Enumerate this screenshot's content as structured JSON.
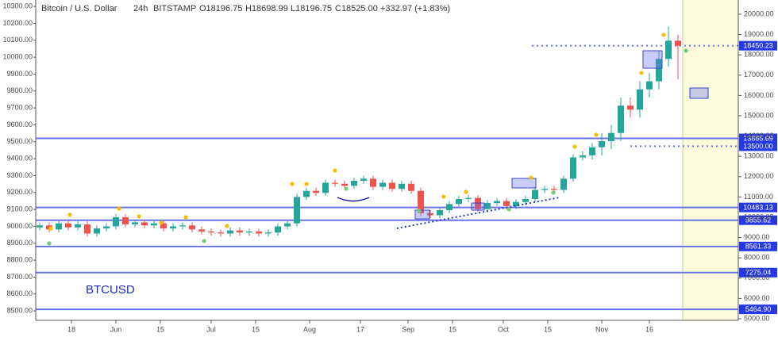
{
  "chart_data": {
    "type": "candlestick",
    "symbol": "Bitcoin / U.S. Dollar",
    "interval": "24h",
    "exchange": "BITSTAMP",
    "ohlc_open": "O18196.75",
    "ohlc_high": "H18698.99",
    "ohlc_low": "L18196.75",
    "ohlc_close": "C18525.00",
    "change": "+332.97 (+1.83%)",
    "annotation": "BTCUSD",
    "up_color": "#26a69a",
    "down_color": "#ef5350",
    "level_color": "#6a74e8",
    "label_color": "#2438e8",
    "highlight_color": "#fbfbdc",
    "xlim": [
      -1.25,
      220
    ],
    "ylim": [
      4922,
      20703
    ],
    "y2lim": [
      8444,
      10338
    ],
    "highlight_xrange": [
      202.5,
      220
    ],
    "xticks": [
      {
        "value": 10,
        "label": "18"
      },
      {
        "value": 24,
        "label": "Jun"
      },
      {
        "value": 38,
        "label": "15"
      },
      {
        "value": 54,
        "label": "Jul"
      },
      {
        "value": 68,
        "label": "15"
      },
      {
        "value": 85,
        "label": "Aug"
      },
      {
        "value": 101,
        "label": "17"
      },
      {
        "value": 116,
        "label": "Sep"
      },
      {
        "value": 130,
        "label": "15"
      },
      {
        "value": 146,
        "label": "Oct"
      },
      {
        "value": 160,
        "label": "15"
      },
      {
        "value": 177,
        "label": "Nov"
      },
      {
        "value": 192,
        "label": "16"
      }
    ],
    "yticks": [
      {
        "value": 20000,
        "label": "20000.00"
      },
      {
        "value": 19000,
        "label": "19000.00"
      },
      {
        "value": 18000,
        "label": "18000.00"
      },
      {
        "value": 17000,
        "label": "17000.00"
      },
      {
        "value": 16000,
        "label": "16000.00"
      },
      {
        "value": 15000,
        "label": "15000.00"
      },
      {
        "value": 14000,
        "label": "14000.00"
      },
      {
        "value": 13000,
        "label": "13000.00"
      },
      {
        "value": 12000,
        "label": "12000.00"
      },
      {
        "value": 11000,
        "label": "11000.00"
      },
      {
        "value": 10000,
        "label": "10000.00"
      },
      {
        "value": 9000,
        "label": "9000.00"
      },
      {
        "value": 8000,
        "label": "8000.00"
      },
      {
        "value": 7000,
        "label": "7000.00"
      },
      {
        "value": 6000,
        "label": "6000.00"
      },
      {
        "value": 5000,
        "label": "5000.00"
      }
    ],
    "y2ticks": [
      {
        "value": 10300,
        "label": "10300.00"
      },
      {
        "value": 10200,
        "label": "10200.00"
      },
      {
        "value": 10100,
        "label": "10100.00"
      },
      {
        "value": 10000,
        "label": "10000.00"
      },
      {
        "value": 9900,
        "label": "9900.00"
      },
      {
        "value": 9800,
        "label": "9800.00"
      },
      {
        "value": 9700,
        "label": "9700.00"
      },
      {
        "value": 9600,
        "label": "9600.00"
      },
      {
        "value": 9500,
        "label": "9500.00"
      },
      {
        "value": 9400,
        "label": "9400.00"
      },
      {
        "value": 9300,
        "label": "9300.00"
      },
      {
        "value": 9200,
        "label": "9200.00"
      },
      {
        "value": 9100,
        "label": "9100.00"
      },
      {
        "value": 9000,
        "label": "9000.00"
      },
      {
        "value": 8900,
        "label": "8900.00"
      },
      {
        "value": 8800,
        "label": "8800.00"
      },
      {
        "value": 8700,
        "label": "8700.00"
      },
      {
        "value": 8600,
        "label": "8600.00"
      },
      {
        "value": 8500,
        "label": "8500.00"
      }
    ],
    "levels": [
      {
        "value": 18450.23,
        "style": "dotted",
        "from": 155
      },
      {
        "value": 13885.69,
        "style": "solid"
      },
      {
        "value": 13500,
        "label": "13500.00",
        "style": "dotted",
        "from": 186
      },
      {
        "value": 10483.13,
        "style": "solid"
      },
      {
        "value": 9855.62,
        "style": "solid"
      },
      {
        "value": 8561.33,
        "style": "solid"
      },
      {
        "value": 7275.04,
        "style": "solid"
      },
      {
        "value": 5464.9,
        "label": "5464.90",
        "style": "solid"
      }
    ],
    "x": [
      0,
      3,
      6,
      9,
      12,
      15,
      18,
      21,
      24,
      27,
      30,
      33,
      36,
      39,
      42,
      45,
      48,
      51,
      54,
      57,
      60,
      63,
      66,
      69,
      72,
      75,
      78,
      81,
      84,
      87,
      90,
      93,
      96,
      99,
      102,
      105,
      108,
      111,
      114,
      117,
      120,
      123,
      126,
      129,
      132,
      135,
      138,
      141,
      144,
      147,
      150,
      153,
      156,
      159,
      162,
      165,
      168,
      171,
      174,
      177,
      180,
      183,
      186,
      189,
      192,
      195,
      198,
      201
    ],
    "open": [
      9500,
      9600,
      9400,
      9700,
      9500,
      9650,
      9200,
      9450,
      9550,
      10000,
      9650,
      9750,
      9600,
      9700,
      9450,
      9550,
      9600,
      9400,
      9300,
      9250,
      9200,
      9350,
      9250,
      9300,
      9200,
      9250,
      9550,
      9700,
      11000,
      11300,
      11200,
      11700,
      11650,
      11550,
      11800,
      11900,
      11500,
      11700,
      11400,
      11650,
      11300,
      10200,
      10100,
      10350,
      10650,
      10900,
      10950,
      10400,
      10700,
      10800,
      10550,
      10750,
      10900,
      11350,
      11400,
      11350,
      11900,
      12950,
      13050,
      13450,
      13750,
      14150,
      15500,
      15300,
      16300,
      16700,
      17800,
      18700
    ],
    "high": [
      9750,
      9750,
      9850,
      9850,
      9800,
      9800,
      9600,
      9700,
      10150,
      10150,
      9900,
      9900,
      9850,
      9850,
      9700,
      9750,
      9750,
      9550,
      9450,
      9400,
      9500,
      9500,
      9450,
      9450,
      9400,
      9700,
      9850,
      11150,
      11450,
      11450,
      11850,
      11850,
      11800,
      11950,
      12050,
      12050,
      11850,
      11850,
      11800,
      11800,
      11450,
      10350,
      10500,
      10800,
      11050,
      11100,
      11100,
      10850,
      10950,
      10950,
      10900,
      11050,
      11500,
      11550,
      11550,
      12050,
      13100,
      13250,
      13650,
      14150,
      14550,
      15900,
      15900,
      16700,
      17100,
      18200,
      19400,
      19000
    ],
    "low": [
      9350,
      9250,
      9250,
      9350,
      9350,
      9050,
      9050,
      9300,
      9400,
      9500,
      9500,
      9450,
      9450,
      9300,
      9300,
      9400,
      9250,
      9150,
      9100,
      9050,
      9050,
      9100,
      9100,
      9050,
      9050,
      9100,
      9400,
      9550,
      10850,
      11050,
      11050,
      11500,
      11400,
      11400,
      11650,
      11350,
      11350,
      11250,
      11250,
      11150,
      10050,
      9950,
      9950,
      10200,
      10500,
      10750,
      10250,
      10250,
      10550,
      10400,
      10400,
      10600,
      10750,
      11200,
      11200,
      11200,
      11750,
      12800,
      12850,
      13050,
      13350,
      13750,
      14900,
      14900,
      15900,
      16300,
      17400,
      16800
    ],
    "close": [
      9600,
      9400,
      9700,
      9500,
      9650,
      9200,
      9450,
      9550,
      10000,
      9650,
      9750,
      9600,
      9700,
      9450,
      9550,
      9600,
      9400,
      9300,
      9250,
      9200,
      9350,
      9250,
      9300,
      9200,
      9250,
      9550,
      9700,
      11000,
      11300,
      11200,
      11700,
      11650,
      11550,
      11800,
      11900,
      11500,
      11700,
      11400,
      11650,
      11300,
      10200,
      10100,
      10350,
      10650,
      10900,
      10950,
      10400,
      10700,
      10800,
      10550,
      10750,
      10900,
      11350,
      11400,
      11350,
      11900,
      12950,
      13050,
      13450,
      13750,
      14150,
      15500,
      15300,
      16300,
      16700,
      17800,
      18700,
      18450
    ]
  }
}
